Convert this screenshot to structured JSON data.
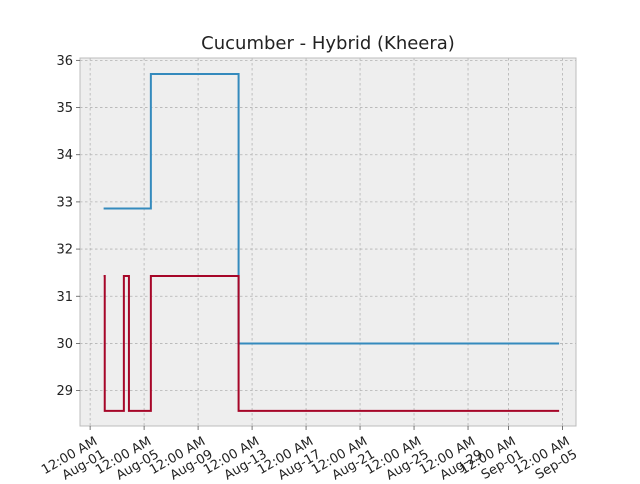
{
  "chart_data": {
    "type": "line",
    "title": "Cucumber - Hybrid (Kheera)",
    "xlabel": "",
    "ylabel": "",
    "step": true,
    "grid": true,
    "legend": "none",
    "xlim": [
      "2023-07-31T06:00",
      "2023-09-06T00:00"
    ],
    "ylim": [
      28.25,
      36.05
    ],
    "x_tick_values": [
      "2023-08-01T00:00",
      "2023-08-05T00:00",
      "2023-08-09T00:00",
      "2023-08-13T00:00",
      "2023-08-17T00:00",
      "2023-08-21T00:00",
      "2023-08-25T00:00",
      "2023-08-29T00:00",
      "2023-09-01T00:00",
      "2023-09-05T00:00"
    ],
    "x_tick_labels": [
      [
        "12:00 AM",
        "Aug-01"
      ],
      [
        "12:00 AM",
        "Aug-05"
      ],
      [
        "12:00 AM",
        "Aug-09"
      ],
      [
        "12:00 AM",
        "Aug-13"
      ],
      [
        "12:00 AM",
        "Aug-17"
      ],
      [
        "12:00 AM",
        "Aug-21"
      ],
      [
        "12:00 AM",
        "Aug-25"
      ],
      [
        "12:00 AM",
        "Aug-29"
      ],
      [
        "12:00 AM",
        "Sep-01"
      ],
      [
        "12:00 AM",
        "Sep-05"
      ]
    ],
    "y_ticks": [
      29,
      30,
      31,
      32,
      33,
      34,
      35,
      36
    ],
    "series": [
      {
        "color": "#348abd",
        "x": [
          "2023-08-02T00:00",
          "2023-08-05T12:00",
          "2023-08-12T00:00",
          "2023-09-04T18:00"
        ],
        "values": [
          32.86,
          35.71,
          30.0,
          30.0
        ]
      },
      {
        "color": "#a60628",
        "x": [
          "2023-08-02T00:00",
          "2023-08-02T02:00",
          "2023-08-03T12:00",
          "2023-08-03T21:00",
          "2023-08-05T12:00",
          "2023-08-12T00:00",
          "2023-09-04T18:00"
        ],
        "values": [
          31.43,
          28.57,
          31.43,
          28.57,
          31.43,
          28.57,
          28.57
        ]
      }
    ]
  },
  "colors": {
    "plot_background": "#eeeeee",
    "grid": "#b2b2b2",
    "frame": "#bcbcbc"
  }
}
